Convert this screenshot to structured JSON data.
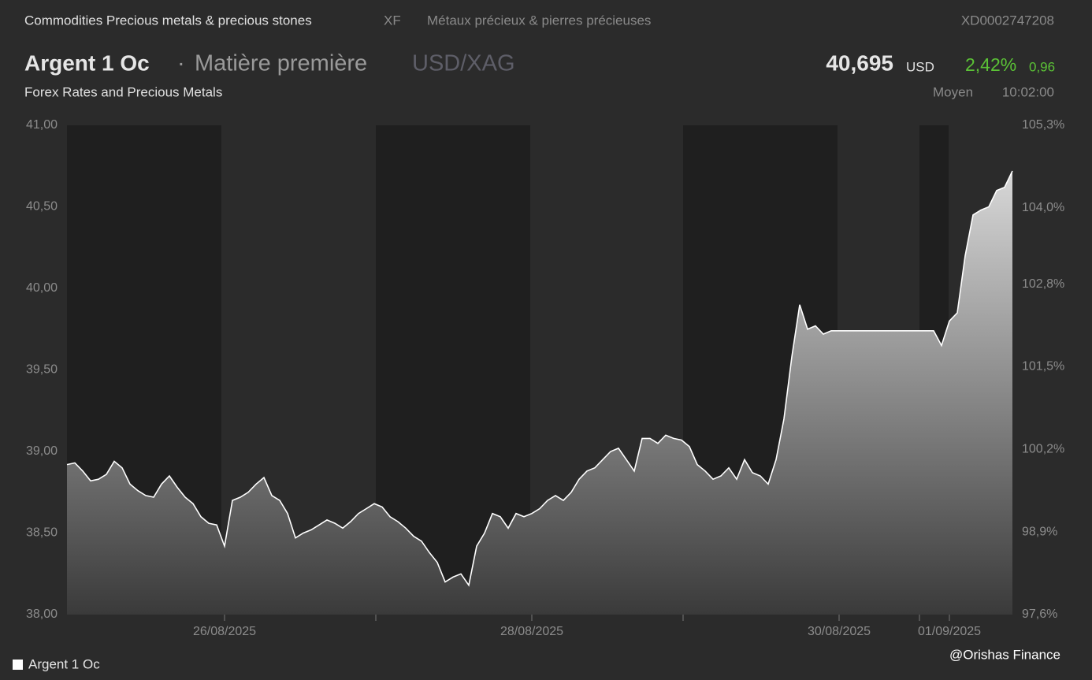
{
  "header": {
    "breadcrumb": [
      "Commodities Precious metals & precious stones",
      "XF",
      "Métaux précieux & pierres précieuses"
    ],
    "isin": "XD0002747208",
    "name": "Argent 1 Oc",
    "category": "Matière première",
    "pair": "USD/XAG",
    "price": "40,695",
    "currency": "USD",
    "change_pct": "2,42%",
    "change": "0,96",
    "source": "Forex Rates and Precious Metals",
    "price_type": "Moyen",
    "time": "10:02:00"
  },
  "watermark": "@Orishas Finance",
  "chart_data": {
    "type": "area",
    "categories": [
      null,
      null,
      null,
      null,
      null,
      null,
      null,
      null,
      null,
      null,
      null,
      null,
      null,
      null,
      null,
      null,
      null,
      null,
      null,
      null,
      "26/08/2025",
      null,
      null,
      null,
      null,
      null,
      null,
      null,
      null,
      null,
      null,
      null,
      null,
      null,
      null,
      null,
      null,
      null,
      null,
      null,
      null,
      null,
      null,
      null,
      null,
      null,
      null,
      null,
      null,
      null,
      null,
      null,
      null,
      null,
      null,
      null,
      null,
      null,
      null,
      "28/08/2025",
      null,
      null,
      null,
      null,
      null,
      null,
      null,
      null,
      null,
      null,
      null,
      null,
      null,
      null,
      null,
      null,
      null,
      null,
      null,
      null,
      null,
      null,
      null,
      null,
      null,
      null,
      null,
      null,
      null,
      null,
      null,
      null,
      null,
      null,
      null,
      null,
      null,
      null,
      "30/08/2025",
      null,
      null,
      null,
      null,
      null,
      null,
      null,
      null,
      null,
      null,
      null,
      null,
      null,
      "01/09/2025",
      null,
      null,
      null,
      null,
      null,
      null,
      null,
      null
    ],
    "series": [
      {
        "name": "Argent 1 Oc",
        "color": "#ffffff",
        "values": [
          38.92,
          38.93,
          38.88,
          38.82,
          38.83,
          38.86,
          38.94,
          38.9,
          38.8,
          38.76,
          38.73,
          38.72,
          38.8,
          38.85,
          38.78,
          38.72,
          38.68,
          38.6,
          38.56,
          38.55,
          38.42,
          38.7,
          38.72,
          38.75,
          38.8,
          38.84,
          38.73,
          38.7,
          38.62,
          38.47,
          38.5,
          38.52,
          38.55,
          38.58,
          38.56,
          38.53,
          38.57,
          38.62,
          38.65,
          38.68,
          38.66,
          38.6,
          38.57,
          38.53,
          38.48,
          38.45,
          38.38,
          38.32,
          38.2,
          38.23,
          38.25,
          38.18,
          38.42,
          38.5,
          38.62,
          38.6,
          38.53,
          38.62,
          38.6,
          38.62,
          38.65,
          38.7,
          38.73,
          38.7,
          38.75,
          38.83,
          38.88,
          38.9,
          38.95,
          39.0,
          39.02,
          38.95,
          38.88,
          39.08,
          39.08,
          39.05,
          39.1,
          39.08,
          39.07,
          39.03,
          38.92,
          38.88,
          38.83,
          38.85,
          38.9,
          38.83,
          38.95,
          38.87,
          38.85,
          38.8,
          38.95,
          39.2,
          39.58,
          39.9,
          39.75,
          39.77,
          39.72,
          39.74,
          39.74,
          39.74,
          39.74,
          39.74,
          39.74,
          39.74,
          39.74,
          39.74,
          39.74,
          39.74,
          39.74,
          39.74,
          39.74,
          39.65,
          39.8,
          39.85,
          40.2,
          40.45,
          40.48,
          40.5,
          40.6,
          40.62,
          40.72
        ]
      }
    ],
    "ylim": [
      38,
      41
    ],
    "yticks": [
      {
        "value": 38,
        "label": "38,00"
      },
      {
        "value": 38.5,
        "label": "38,50"
      },
      {
        "value": 39,
        "label": "39,00"
      },
      {
        "value": 39.5,
        "label": "39,50"
      },
      {
        "value": 40,
        "label": "40,00"
      },
      {
        "value": 40.5,
        "label": "40,50"
      },
      {
        "value": 41,
        "label": "41,00"
      }
    ],
    "y2lim": [
      97.6,
      105.3
    ],
    "y2ticks": [
      {
        "value": 97.6,
        "label": "97,6%"
      },
      {
        "value": 98.9,
        "label": "98,9%"
      },
      {
        "value": 100.2,
        "label": "100,2%"
      },
      {
        "value": 101.5,
        "label": "101,5%"
      },
      {
        "value": 102.8,
        "label": "102,8%"
      },
      {
        "value": 104.0,
        "label": "104,0%"
      },
      {
        "value": 105.3,
        "label": "105,3%"
      }
    ],
    "grid": false
  }
}
